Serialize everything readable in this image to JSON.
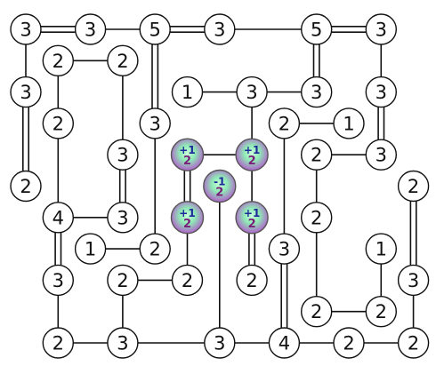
{
  "game": {
    "name": "Bridges (Hashiwokakero)",
    "colors": {
      "bridge": "#111111",
      "island_fill": "#ffffff",
      "island_stroke": "#111111",
      "badge_top_text": "#1e2a9a",
      "badge_bottom_text": "#7a1e7a",
      "badge_glow_inner": "#9ff2c0",
      "badge_glow_outer": "#c06bd0"
    }
  },
  "board": {
    "columns": 14,
    "rows": 11,
    "islands": [
      {
        "id": "i1",
        "col": 0,
        "row": 0,
        "value": "3"
      },
      {
        "id": "i2",
        "col": 2,
        "row": 0,
        "value": "3"
      },
      {
        "id": "i3",
        "col": 4,
        "row": 0,
        "value": "5"
      },
      {
        "id": "i4",
        "col": 6,
        "row": 0,
        "value": "3"
      },
      {
        "id": "i5",
        "col": 9,
        "row": 0,
        "value": "5"
      },
      {
        "id": "i6",
        "col": 11,
        "row": 0,
        "value": "3"
      },
      {
        "id": "i7",
        "col": 1,
        "row": 1,
        "value": "2"
      },
      {
        "id": "i8",
        "col": 3,
        "row": 1,
        "value": "2"
      },
      {
        "id": "i9",
        "col": 0,
        "row": 2,
        "value": "3"
      },
      {
        "id": "i10",
        "col": 5,
        "row": 2,
        "value": "1"
      },
      {
        "id": "i11",
        "col": 7,
        "row": 2,
        "value": "3"
      },
      {
        "id": "i12",
        "col": 9,
        "row": 2,
        "value": "3"
      },
      {
        "id": "i13",
        "col": 11,
        "row": 2,
        "value": "3"
      },
      {
        "id": "i14",
        "col": 1,
        "row": 3,
        "value": "2"
      },
      {
        "id": "i15",
        "col": 4,
        "row": 3,
        "value": "3"
      },
      {
        "id": "i16",
        "col": 8,
        "row": 3,
        "value": "2"
      },
      {
        "id": "i17",
        "col": 10,
        "row": 3,
        "value": "1"
      },
      {
        "id": "i18",
        "col": 3,
        "row": 4,
        "value": "3"
      },
      {
        "id": "i19",
        "col": 9,
        "row": 4,
        "value": "2"
      },
      {
        "id": "i20",
        "col": 11,
        "row": 4,
        "value": "3"
      },
      {
        "id": "i21",
        "col": 0,
        "row": 5,
        "value": "2"
      },
      {
        "id": "i22",
        "col": 12,
        "row": 5,
        "value": "2"
      },
      {
        "id": "i23",
        "col": 1,
        "row": 6,
        "value": "4"
      },
      {
        "id": "i24",
        "col": 3,
        "row": 6,
        "value": "3"
      },
      {
        "id": "i25",
        "col": 9,
        "row": 6,
        "value": "2"
      },
      {
        "id": "i26",
        "col": 2,
        "row": 7,
        "value": "1"
      },
      {
        "id": "i27",
        "col": 4,
        "row": 7,
        "value": "2"
      },
      {
        "id": "i28",
        "col": 8,
        "row": 7,
        "value": "3"
      },
      {
        "id": "i29",
        "col": 11,
        "row": 7,
        "value": "1"
      },
      {
        "id": "i30",
        "col": 1,
        "row": 8,
        "value": "3"
      },
      {
        "id": "i31",
        "col": 3,
        "row": 8,
        "value": "2"
      },
      {
        "id": "i32",
        "col": 5,
        "row": 8,
        "value": "2"
      },
      {
        "id": "i33",
        "col": 7,
        "row": 8,
        "value": "2"
      },
      {
        "id": "i34",
        "col": 12,
        "row": 8,
        "value": "3"
      },
      {
        "id": "i35",
        "col": 9,
        "row": 9,
        "value": "2"
      },
      {
        "id": "i36",
        "col": 11,
        "row": 9,
        "value": "2"
      },
      {
        "id": "i37",
        "col": 1,
        "row": 10,
        "value": "2"
      },
      {
        "id": "i38",
        "col": 3,
        "row": 10,
        "value": "3"
      },
      {
        "id": "i39",
        "col": 6,
        "row": 10,
        "value": "3"
      },
      {
        "id": "i40",
        "col": 8,
        "row": 10,
        "value": "4"
      },
      {
        "id": "i41",
        "col": 10,
        "row": 10,
        "value": "2"
      },
      {
        "id": "i42",
        "col": 12,
        "row": 10,
        "value": "2"
      }
    ],
    "badges": [
      {
        "id": "b1",
        "col": 5,
        "row": 4,
        "top": "+1",
        "bottom": "2"
      },
      {
        "id": "b2",
        "col": 7,
        "row": 4,
        "top": "+1",
        "bottom": "2"
      },
      {
        "id": "b3",
        "col": 6,
        "row": 5,
        "top": "-1",
        "bottom": "2"
      },
      {
        "id": "b4",
        "col": 5,
        "row": 6,
        "top": "+1",
        "bottom": "2"
      },
      {
        "id": "b5",
        "col": 7,
        "row": 6,
        "top": "+1",
        "bottom": "2"
      }
    ],
    "bridges": [
      {
        "a": "i1",
        "b": "i2",
        "count": 2
      },
      {
        "a": "i2",
        "b": "i3",
        "count": 1
      },
      {
        "a": "i3",
        "b": "i4",
        "count": 2
      },
      {
        "a": "i4",
        "b": "i5",
        "count": 1
      },
      {
        "a": "i5",
        "b": "i6",
        "count": 2
      },
      {
        "a": "i1",
        "b": "i9",
        "count": 1
      },
      {
        "a": "i9",
        "b": "i21",
        "count": 2
      },
      {
        "a": "i7",
        "b": "i8",
        "count": 1
      },
      {
        "a": "i7",
        "b": "i14",
        "count": 1
      },
      {
        "a": "i8",
        "b": "i18",
        "count": 1
      },
      {
        "a": "i3",
        "b": "i15",
        "count": 2
      },
      {
        "a": "i15",
        "b": "i27",
        "count": 1
      },
      {
        "a": "i5",
        "b": "i12",
        "count": 2
      },
      {
        "a": "i6",
        "b": "i13",
        "count": 1
      },
      {
        "a": "i10",
        "b": "i11",
        "count": 1
      },
      {
        "a": "i11",
        "b": "i12",
        "count": 1
      },
      {
        "a": "i11",
        "b": "b2",
        "count": 1
      },
      {
        "a": "i13",
        "b": "i20",
        "count": 2
      },
      {
        "a": "i16",
        "b": "i17",
        "count": 1
      },
      {
        "a": "i16",
        "b": "i28",
        "count": 1
      },
      {
        "a": "i19",
        "b": "i20",
        "count": 1
      },
      {
        "a": "i19",
        "b": "i25",
        "count": 1
      },
      {
        "a": "i14",
        "b": "i23",
        "count": 1
      },
      {
        "a": "i18",
        "b": "i24",
        "count": 2
      },
      {
        "a": "i23",
        "b": "i24",
        "count": 1
      },
      {
        "a": "i23",
        "b": "i30",
        "count": 2
      },
      {
        "a": "i30",
        "b": "i37",
        "count": 1
      },
      {
        "a": "i26",
        "b": "i27",
        "count": 1
      },
      {
        "a": "b1",
        "b": "b2",
        "count": 1
      },
      {
        "a": "b1",
        "b": "b4",
        "count": 2
      },
      {
        "a": "b2",
        "b": "b5",
        "count": 1
      },
      {
        "a": "b4",
        "b": "i32",
        "count": 1
      },
      {
        "a": "b5",
        "b": "i33",
        "count": 2
      },
      {
        "a": "b3",
        "b": "i39",
        "count": 1
      },
      {
        "a": "i31",
        "b": "i32",
        "count": 1
      },
      {
        "a": "i31",
        "b": "i38",
        "count": 1
      },
      {
        "a": "i28",
        "b": "i40",
        "count": 2
      },
      {
        "a": "i25",
        "b": "i35",
        "count": 1
      },
      {
        "a": "i35",
        "b": "i36",
        "count": 1
      },
      {
        "a": "i29",
        "b": "i36",
        "count": 1
      },
      {
        "a": "i22",
        "b": "i34",
        "count": 2
      },
      {
        "a": "i34",
        "b": "i42",
        "count": 1
      },
      {
        "a": "i37",
        "b": "i38",
        "count": 1
      },
      {
        "a": "i38",
        "b": "i39",
        "count": 1
      },
      {
        "a": "i39",
        "b": "i40",
        "count": 1
      },
      {
        "a": "i40",
        "b": "i41",
        "count": 1
      },
      {
        "a": "i41",
        "b": "i42",
        "count": 1
      }
    ]
  }
}
